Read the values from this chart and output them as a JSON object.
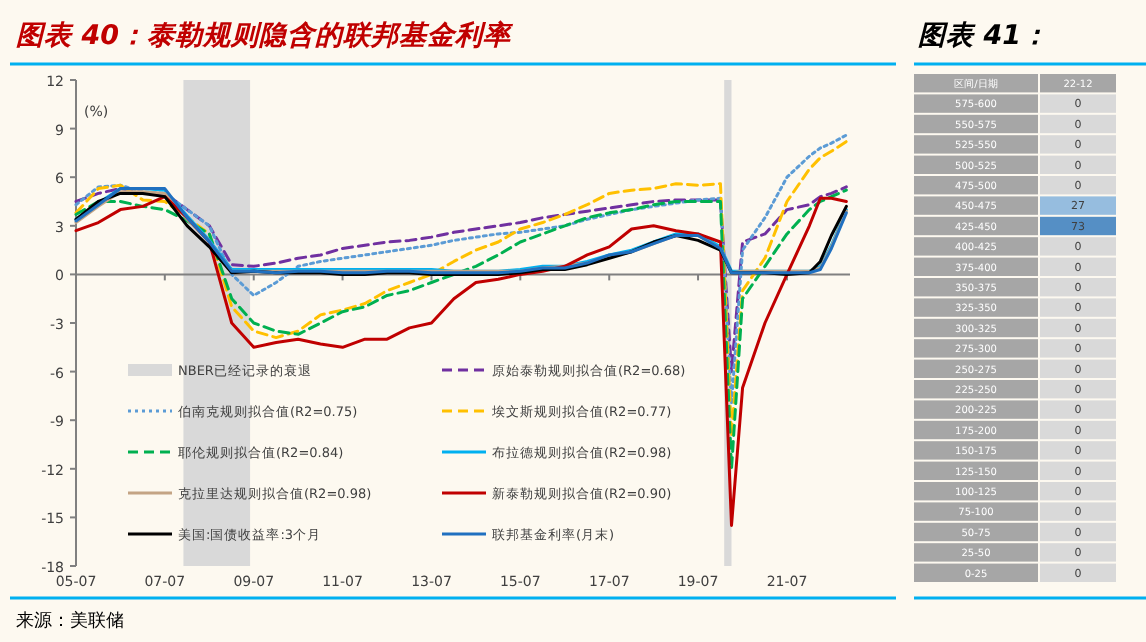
{
  "chart_data": [
    {
      "type": "line",
      "title": "图表 40：泰勒规则隐含的联邦基金利率",
      "ylabel": "(%)",
      "annotations": [
        "来源：美联储"
      ],
      "x": [
        "2005-07",
        "2006-01",
        "2006-07",
        "2007-01",
        "2007-07",
        "2008-01",
        "2008-07",
        "2009-01",
        "2009-07",
        "2010-01",
        "2010-07",
        "2011-01",
        "2011-07",
        "2012-01",
        "2012-07",
        "2013-01",
        "2013-07",
        "2014-01",
        "2014-07",
        "2015-01",
        "2015-07",
        "2016-01",
        "2016-07",
        "2017-01",
        "2017-07",
        "2018-01",
        "2018-07",
        "2019-01",
        "2019-07",
        "2020-01",
        "2020-04",
        "2020-07",
        "2021-01",
        "2021-07",
        "2022-01",
        "2022-04",
        "2022-07",
        "2022-11"
      ],
      "xlim": [
        "2005-07",
        "2022-12"
      ],
      "xticks": [
        {
          "value": "2005-07",
          "label": "05-07"
        },
        {
          "value": "2007-07",
          "label": "07-07"
        },
        {
          "value": "2009-07",
          "label": "09-07"
        },
        {
          "value": "2011-07",
          "label": "11-07"
        },
        {
          "value": "2013-07",
          "label": "13-07"
        },
        {
          "value": "2015-07",
          "label": "15-07"
        },
        {
          "value": "2017-07",
          "label": "17-07"
        },
        {
          "value": "2019-07",
          "label": "19-07"
        },
        {
          "value": "2021-07",
          "label": "21-07"
        }
      ],
      "ylim": [
        -18,
        12
      ],
      "yticks": [
        -18,
        -15,
        -12,
        -9,
        -6,
        -3,
        0,
        3,
        6,
        9,
        12
      ],
      "legend": "bottom",
      "bands": [
        {
          "axis": "x",
          "from": "2007-12",
          "to": "2009-06",
          "label": "NBER已经记录的衰退",
          "color": "#d9d9d9"
        },
        {
          "axis": "x",
          "from": "2020-02",
          "to": "2020-04",
          "color": "#d9d9d9"
        }
      ],
      "series": [
        {
          "name": "原始泰勒规则拟合值(R2=0.68)",
          "color": "#7030a0",
          "line_style": "dashed",
          "values": [
            4.5,
            5.0,
            5.3,
            5.0,
            5.0,
            4.0,
            3.0,
            0.6,
            0.5,
            0.7,
            1.0,
            1.2,
            1.6,
            1.8,
            2.0,
            2.1,
            2.3,
            2.6,
            2.8,
            3.0,
            3.2,
            3.5,
            3.7,
            3.9,
            4.1,
            4.3,
            4.5,
            4.6,
            4.6,
            4.6,
            -6,
            2.0,
            2.5,
            4.0,
            4.3,
            4.8,
            5.0,
            5.4
          ]
        },
        {
          "name": "伯南克规则拟合值(R2=0.75)",
          "color": "#5b9bd5",
          "line_style": "dotted",
          "values": [
            4.3,
            5.4,
            5.5,
            5.1,
            5.0,
            4.0,
            3.0,
            0.0,
            -1.3,
            -0.5,
            0.5,
            0.8,
            1.0,
            1.2,
            1.4,
            1.6,
            1.8,
            2.1,
            2.3,
            2.5,
            2.6,
            2.8,
            3.0,
            3.4,
            3.7,
            4.0,
            4.2,
            4.4,
            4.6,
            4.7,
            -8,
            1.5,
            3.5,
            6.0,
            7.3,
            7.8,
            8.1,
            8.6
          ]
        },
        {
          "name": "埃文斯规则拟合值(R2=0.77)",
          "color": "#ffc000",
          "line_style": "dashed",
          "values": [
            3.8,
            5.3,
            5.5,
            4.6,
            4.5,
            3.5,
            2.5,
            -2.0,
            -3.5,
            -3.9,
            -3.5,
            -2.5,
            -2.2,
            -1.8,
            -1.0,
            -0.5,
            0.0,
            0.8,
            1.5,
            2.0,
            2.8,
            3.2,
            3.7,
            4.3,
            5.0,
            5.2,
            5.3,
            5.6,
            5.5,
            5.6,
            -10,
            -1.0,
            1.0,
            4.5,
            6.5,
            7.2,
            7.6,
            8.2
          ]
        },
        {
          "name": "耶伦规则拟合值(R2=0.84)",
          "color": "#00b050",
          "line_style": "dashed",
          "values": [
            3.7,
            4.5,
            4.5,
            4.2,
            4.0,
            3.3,
            2.5,
            -1.5,
            -3.0,
            -3.5,
            -3.7,
            -3.0,
            -2.3,
            -2.0,
            -1.3,
            -1.0,
            -0.5,
            0.0,
            0.5,
            1.2,
            2.0,
            2.5,
            3.0,
            3.5,
            3.8,
            4.0,
            4.3,
            4.5,
            4.5,
            4.5,
            -12,
            -1.5,
            0.5,
            2.5,
            4.0,
            4.5,
            4.8,
            5.2
          ]
        },
        {
          "name": "布拉德规则拟合值(R2=0.98)",
          "color": "#00b0f0",
          "line_style": "solid",
          "values": [
            3.4,
            4.4,
            5.3,
            5.3,
            5.2,
            3.6,
            2.1,
            0.3,
            0.3,
            0.3,
            0.3,
            0.3,
            0.3,
            0.3,
            0.3,
            0.3,
            0.3,
            0.2,
            0.2,
            0.2,
            0.3,
            0.5,
            0.5,
            0.8,
            1.2,
            1.5,
            2.0,
            2.5,
            2.5,
            1.7,
            0.2,
            0.2,
            0.2,
            0.2,
            0.2,
            0.5,
            1.8,
            4.0
          ]
        },
        {
          "name": "克拉里达规则拟合值(R2=0.98)",
          "color": "#c4a484",
          "line_style": "solid",
          "values": [
            3.2,
            4.2,
            5.1,
            5.1,
            5.0,
            3.4,
            2.0,
            0.2,
            0.2,
            0.2,
            0.2,
            0.2,
            0.2,
            0.2,
            0.2,
            0.2,
            0.2,
            0.2,
            0.2,
            0.2,
            0.2,
            0.4,
            0.5,
            0.7,
            1.1,
            1.4,
            1.9,
            2.4,
            2.4,
            1.6,
            0.1,
            0.2,
            0.2,
            0.2,
            0.2,
            0.4,
            1.7,
            3.9
          ]
        },
        {
          "name": "新泰勒规则拟合值(R2=0.90)",
          "color": "#c00000",
          "line_style": "solid",
          "values": [
            2.7,
            3.2,
            4.0,
            4.2,
            4.8,
            3.5,
            2.0,
            -3.0,
            -4.5,
            -4.2,
            -4.0,
            -4.3,
            -4.5,
            -4.0,
            -4.0,
            -3.3,
            -3.0,
            -1.5,
            -0.5,
            -0.3,
            0.0,
            0.2,
            0.5,
            1.2,
            1.7,
            2.8,
            3.0,
            2.7,
            2.5,
            2.0,
            -15.5,
            -7.0,
            -3.0,
            0.0,
            3.0,
            4.7,
            4.7,
            4.5
          ]
        },
        {
          "name": "美国:国债收益率:3个月",
          "color": "#000000",
          "line_style": "solid",
          "values": [
            3.4,
            4.5,
            5.0,
            5.0,
            4.8,
            3.0,
            1.7,
            0.1,
            0.2,
            0.1,
            0.1,
            0.1,
            0.0,
            0.0,
            0.1,
            0.1,
            0.0,
            0.0,
            0.0,
            0.0,
            0.1,
            0.3,
            0.3,
            0.6,
            1.0,
            1.4,
            2.0,
            2.4,
            2.1,
            1.5,
            0.1,
            0.1,
            0.1,
            0.0,
            0.1,
            0.8,
            2.4,
            4.2
          ]
        },
        {
          "name": "联邦基金利率(月末)",
          "color": "#2070c0",
          "line_style": "solid",
          "values": [
            3.3,
            4.3,
            5.3,
            5.3,
            5.3,
            3.5,
            2.0,
            0.2,
            0.2,
            0.1,
            0.2,
            0.2,
            0.1,
            0.1,
            0.2,
            0.2,
            0.1,
            0.1,
            0.1,
            0.1,
            0.2,
            0.4,
            0.4,
            0.7,
            1.2,
            1.4,
            1.9,
            2.4,
            2.4,
            1.6,
            0.1,
            0.1,
            0.1,
            0.1,
            0.1,
            0.3,
            1.6,
            3.8
          ]
        }
      ]
    },
    {
      "type": "heatmap",
      "title": "图表 41：",
      "ylabel": "区间/日期",
      "data_labels": true,
      "categories": [
        "22-12"
      ],
      "y_categories": [
        "575-600",
        "550-575",
        "525-550",
        "500-525",
        "475-500",
        "450-475",
        "425-450",
        "400-425",
        "375-400",
        "350-375",
        "325-350",
        "300-325",
        "275-300",
        "250-275",
        "225-250",
        "200-225",
        "175-200",
        "150-175",
        "125-150",
        "100-125",
        "75-100",
        "50-75",
        "25-50",
        "0-25"
      ],
      "cells": [
        [
          0
        ],
        [
          0
        ],
        [
          0
        ],
        [
          0
        ],
        [
          0
        ],
        [
          27
        ],
        [
          73
        ],
        [
          0
        ],
        [
          0
        ],
        [
          0
        ],
        [
          0
        ],
        [
          0
        ],
        [
          0
        ],
        [
          0
        ],
        [
          0
        ],
        [
          0
        ],
        [
          0
        ],
        [
          0
        ],
        [
          0
        ],
        [
          0
        ],
        [
          0
        ],
        [
          0
        ],
        [
          0
        ],
        [
          0
        ]
      ]
    }
  ]
}
